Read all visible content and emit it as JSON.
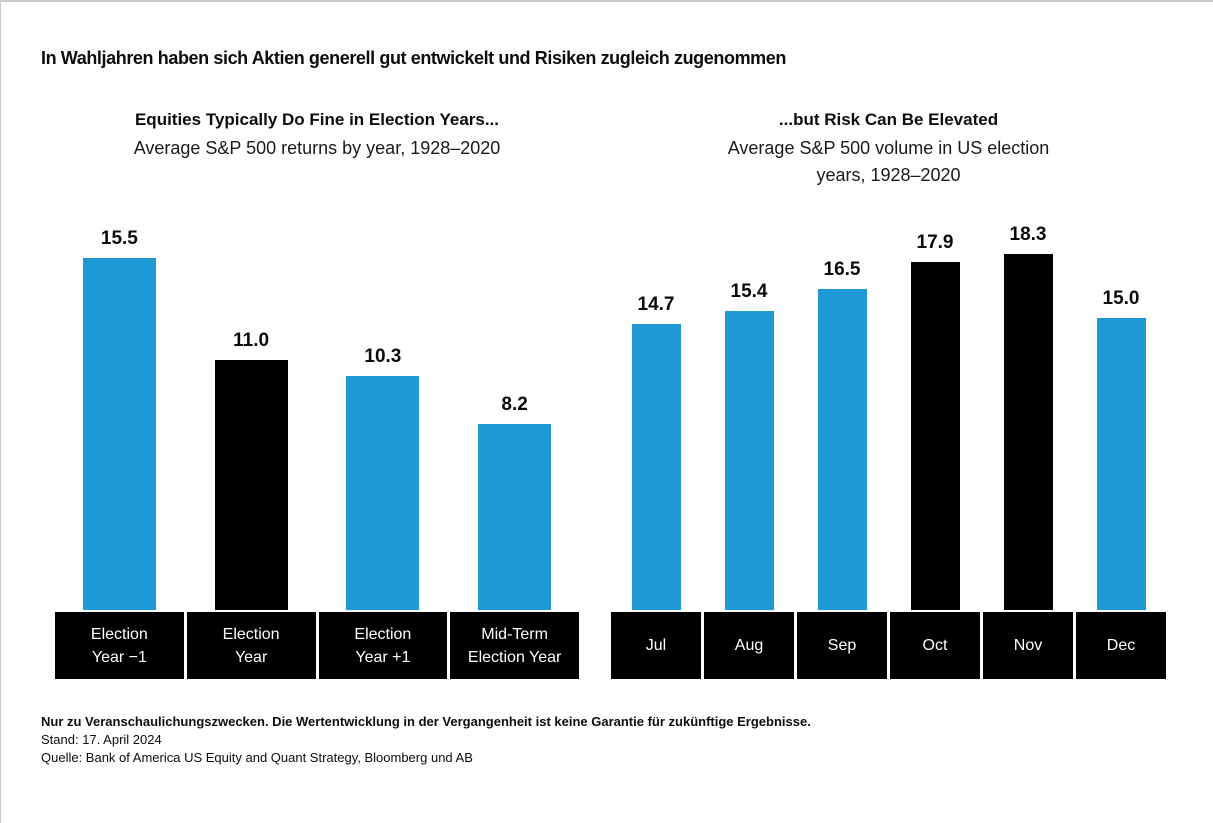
{
  "slide": {
    "title": "In Wahljahren haben sich Aktien generell gut entwickelt und Risiken zugleich zugenommen"
  },
  "palette": {
    "blue": "#2098D5",
    "black": "#000000"
  },
  "chart_data": [
    {
      "type": "bar",
      "title": "Equities Typically Do Fine in Election Years...",
      "subtitle": "Average S&P 500 returns by year, 1928–2020",
      "subtitle_lines": [
        "Average S&P 500 returns by year, 1928–2020"
      ],
      "categories": [
        "Election Year −1",
        "Election Year",
        "Election Year +1",
        "Mid-Term Election Year"
      ],
      "category_lines": [
        [
          "Election",
          "Year −1"
        ],
        [
          "Election",
          "Year"
        ],
        [
          "Election",
          "Year +1"
        ],
        [
          "Mid-Term",
          "Election Year"
        ]
      ],
      "values": [
        15.5,
        11.0,
        10.3,
        8.2
      ],
      "value_labels": [
        "15.5",
        "11.0",
        "10.3",
        "8.2"
      ],
      "bar_colors": [
        "blue",
        "black",
        "blue",
        "blue"
      ],
      "xlabel": "",
      "ylabel": "",
      "ylim": [
        0,
        16
      ],
      "axes_visible": false,
      "grid": false,
      "legend_position": "none",
      "data_labels_position": "above bars, bold"
    },
    {
      "type": "bar",
      "title": "...but Risk Can Be Elevated",
      "subtitle": "Average S&P 500 volume in US election years, 1928–2020",
      "subtitle_lines": [
        "Average S&P 500 volume in US election",
        "years, 1928–2020"
      ],
      "categories": [
        "Jul",
        "Aug",
        "Sep",
        "Oct",
        "Nov",
        "Dec"
      ],
      "category_lines": [
        [
          "Jul"
        ],
        [
          "Aug"
        ],
        [
          "Sep"
        ],
        [
          "Oct"
        ],
        [
          "Nov"
        ],
        [
          "Dec"
        ]
      ],
      "values": [
        14.7,
        15.4,
        16.5,
        17.9,
        18.3,
        15.0
      ],
      "value_labels": [
        "14.7",
        "15.4",
        "16.5",
        "17.9",
        "18.3",
        "15.0"
      ],
      "bar_colors": [
        "blue",
        "blue",
        "blue",
        "black",
        "black",
        "blue"
      ],
      "xlabel": "",
      "ylabel": "",
      "ylim": [
        0,
        19
      ],
      "axes_visible": false,
      "grid": false,
      "legend_position": "none",
      "data_labels_position": "above bars, bold"
    }
  ],
  "footer": {
    "disclaimer": "Nur zu Veranschaulichungszwecken. Die Wertentwicklung in der Vergangenheit ist keine Garantie für zukünftige Ergebnisse.",
    "as_of": "Stand: 17. April 2024",
    "source": "Quelle: Bank of America US Equity and Quant Strategy, Bloomberg und AB"
  }
}
